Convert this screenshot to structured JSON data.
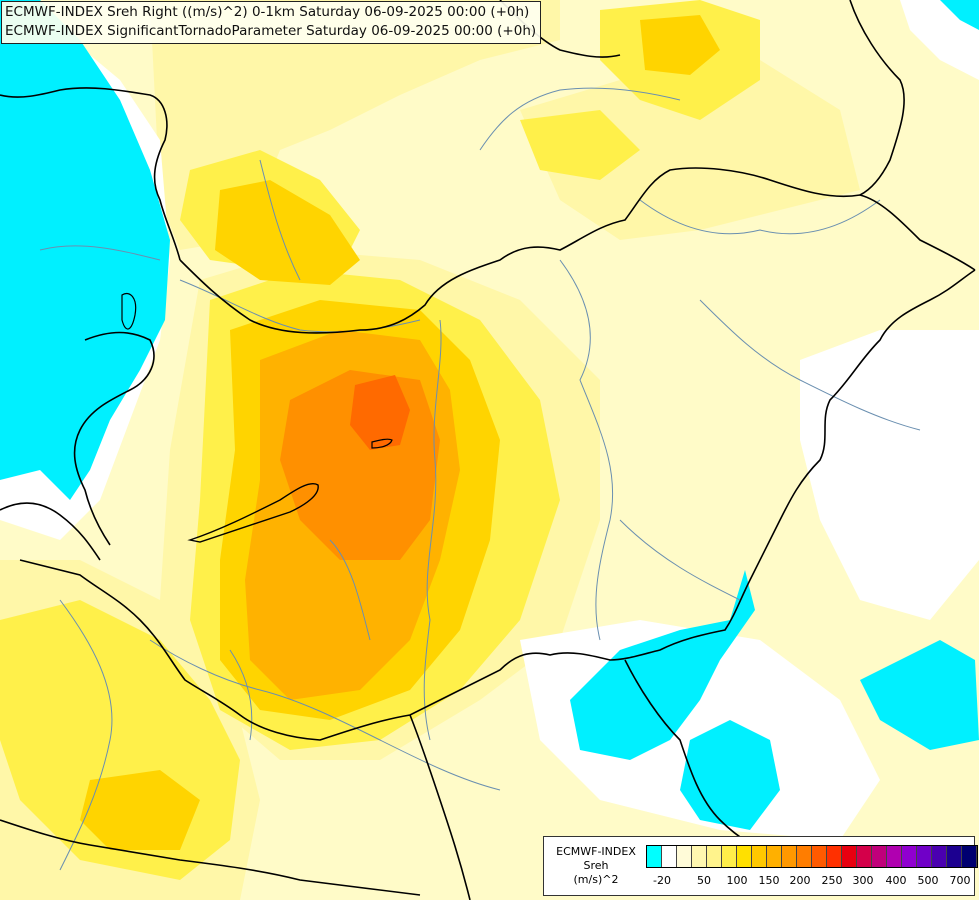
{
  "header": {
    "line1": "ECMWF-INDEX Sreh Right ((m/s)^2) 0-1km Saturday 06-09-2025 00:00 (+0h)",
    "line2": "ECMWF-INDEX SignificantTornadoParameter Saturday 06-09-2025 00:00 (+0h)"
  },
  "legend": {
    "title_line1": "ECMWF-INDEX",
    "title_line2": "Sreh",
    "title_line3": "(m/s)^2",
    "colors": [
      "#00ffff",
      "#ffffff",
      "#fffbd8",
      "#fff7b0",
      "#fff38c",
      "#ffee4a",
      "#ffe000",
      "#ffc800",
      "#ffb000",
      "#ff9800",
      "#ff7d00",
      "#ff5a00",
      "#ff3000",
      "#e80010",
      "#d4004a",
      "#c0007a",
      "#b000b0",
      "#9000d0",
      "#7000c8",
      "#4a00b0",
      "#1c0090",
      "#000070"
    ],
    "ticks": [
      "-20",
      "50",
      "100",
      "150",
      "200",
      "250",
      "300",
      "400",
      "500",
      "700"
    ]
  },
  "map": {
    "colors": {
      "pale": "#fffbc8",
      "light": "#fff7a8",
      "yellow": "#fff04a",
      "gold": "#ffd400",
      "amber": "#ffb200",
      "orange": "#ff9000",
      "deep_orange": "#ff6a00",
      "cyan": "#00f0ff",
      "white": "#ffffff",
      "border": "#000000",
      "river": "#6a8fb0"
    }
  }
}
